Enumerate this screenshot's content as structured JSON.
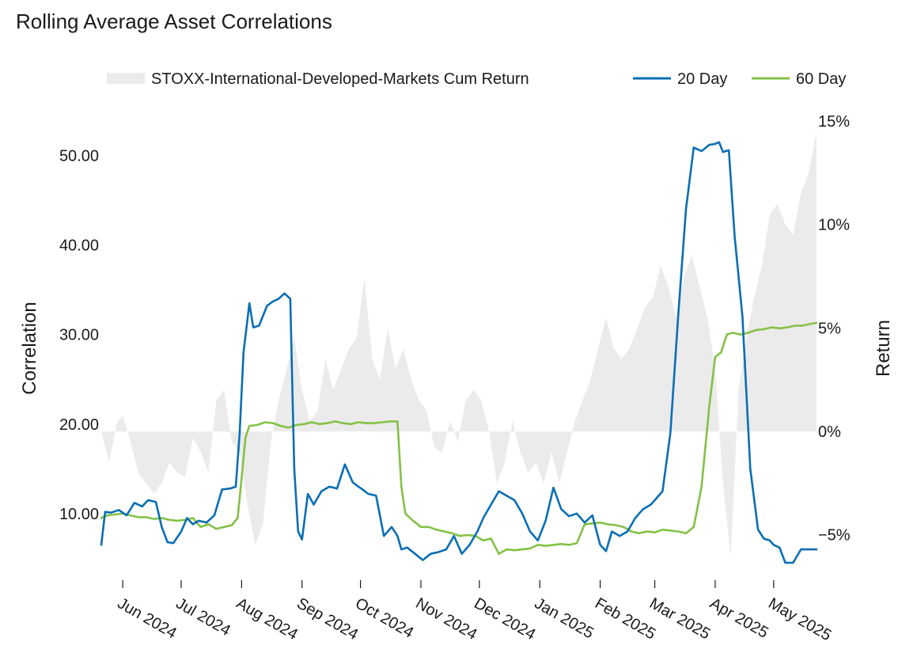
{
  "chart_data": {
    "type": "line",
    "title": "Rolling Average Asset Correlations",
    "ylabel": "Correlation",
    "y2label": "Return",
    "ylim": [
      3,
      55
    ],
    "y2lim": [
      -7.0,
      15.5
    ],
    "yticks": [
      "10.00",
      "20.00",
      "30.00",
      "40.00",
      "50.00"
    ],
    "y2ticks": [
      "−5%",
      "0%",
      "5%",
      "10%",
      "15%"
    ],
    "xlim": [
      "2024-05-21",
      "2025-05-23"
    ],
    "xticks": [
      "Jun 2024",
      "Jul 2024",
      "Aug 2024",
      "Sep 2024",
      "Oct 2024",
      "Nov 2024",
      "Dec 2024",
      "Jan 2025",
      "Feb 2025",
      "Mar 2025",
      "Apr 2025",
      "May 2025"
    ],
    "legend_position": "top",
    "grid": false,
    "colors": {
      "area": "#ebebeb",
      "series_20": "#0a6eb4",
      "series_60": "#84c147",
      "text": "#1a1a1a"
    },
    "area_series": {
      "name": "STOXX-International-Developed-Markets Cum Return",
      "x": [
        "2024-05-21",
        "2024-05-25",
        "2024-05-29",
        "2024-06-01",
        "2024-06-05",
        "2024-06-09",
        "2024-06-13",
        "2024-06-17",
        "2024-06-21",
        "2024-06-25",
        "2024-06-29",
        "2024-07-03",
        "2024-07-07",
        "2024-07-11",
        "2024-07-15",
        "2024-07-19",
        "2024-07-23",
        "2024-07-27",
        "2024-07-31",
        "2024-08-04",
        "2024-08-08",
        "2024-08-12",
        "2024-08-16",
        "2024-08-20",
        "2024-08-24",
        "2024-08-28",
        "2024-09-01",
        "2024-09-05",
        "2024-09-09",
        "2024-09-13",
        "2024-09-17",
        "2024-09-21",
        "2024-09-25",
        "2024-09-29",
        "2024-10-03",
        "2024-10-07",
        "2024-10-11",
        "2024-10-15",
        "2024-10-19",
        "2024-10-23",
        "2024-10-27",
        "2024-10-31",
        "2024-11-04",
        "2024-11-08",
        "2024-11-12",
        "2024-11-16",
        "2024-11-20",
        "2024-11-24",
        "2024-11-28",
        "2024-12-02",
        "2024-12-06",
        "2024-12-10",
        "2024-12-14",
        "2024-12-18",
        "2024-12-22",
        "2024-12-26",
        "2024-12-30",
        "2025-01-03",
        "2025-01-07",
        "2025-01-11",
        "2025-01-15",
        "2025-01-19",
        "2025-01-23",
        "2025-01-27",
        "2025-01-31",
        "2025-02-04",
        "2025-02-08",
        "2025-02-12",
        "2025-02-16",
        "2025-02-20",
        "2025-02-24",
        "2025-02-28",
        "2025-03-04",
        "2025-03-08",
        "2025-03-12",
        "2025-03-16",
        "2025-03-20",
        "2025-03-24",
        "2025-03-28",
        "2025-04-01",
        "2025-04-05",
        "2025-04-09",
        "2025-04-13",
        "2025-04-17",
        "2025-04-21",
        "2025-04-25",
        "2025-04-29",
        "2025-05-03",
        "2025-05-07",
        "2025-05-11",
        "2025-05-15",
        "2025-05-19",
        "2025-05-23"
      ],
      "values": [
        0.0,
        -1.5,
        0.4,
        0.8,
        -0.5,
        -2.0,
        -2.5,
        -3.0,
        -2.5,
        -1.5,
        -2.0,
        -2.2,
        -0.3,
        -1.0,
        -2.0,
        1.5,
        2.0,
        -0.5,
        -1.0,
        -3.5,
        -5.5,
        -4.5,
        -0.5,
        1.5,
        3.0,
        4.5,
        2.0,
        0.5,
        1.0,
        3.5,
        2.0,
        3.0,
        4.0,
        4.5,
        7.4,
        3.5,
        2.5,
        5.0,
        3.0,
        4.0,
        2.5,
        1.5,
        1.0,
        -0.8,
        -1.0,
        0.5,
        -0.5,
        1.5,
        2.0,
        1.5,
        0.0,
        -2.5,
        -1.5,
        0.5,
        -1.0,
        -2.0,
        -1.5,
        -2.5,
        -1.0,
        -2.5,
        -1.0,
        0.5,
        1.5,
        2.5,
        4.0,
        5.5,
        4.0,
        3.5,
        4.0,
        5.0,
        6.0,
        6.5,
        8.0,
        7.0,
        5.5,
        7.5,
        8.5,
        7.0,
        5.5,
        3.0,
        -2.5,
        -6.0,
        2.0,
        4.5,
        6.5,
        8.0,
        10.5,
        11.0,
        10.0,
        9.5,
        11.5,
        12.5,
        14.5
      ]
    },
    "series": [
      {
        "name": "20 Day",
        "x": [
          "2024-05-21",
          "2024-05-23",
          "2024-05-26",
          "2024-05-30",
          "2024-06-03",
          "2024-06-07",
          "2024-06-11",
          "2024-06-14",
          "2024-06-18",
          "2024-06-21",
          "2024-06-24",
          "2024-06-27",
          "2024-07-01",
          "2024-07-04",
          "2024-07-07",
          "2024-07-10",
          "2024-07-14",
          "2024-07-18",
          "2024-07-22",
          "2024-07-26",
          "2024-07-29",
          "2024-07-31",
          "2024-08-02",
          "2024-08-05",
          "2024-08-07",
          "2024-08-10",
          "2024-08-14",
          "2024-08-17",
          "2024-08-20",
          "2024-08-23",
          "2024-08-26",
          "2024-08-28",
          "2024-08-30",
          "2024-09-01",
          "2024-09-04",
          "2024-09-07",
          "2024-09-11",
          "2024-09-15",
          "2024-09-19",
          "2024-09-23",
          "2024-09-27",
          "2024-09-30",
          "2024-10-02",
          "2024-10-05",
          "2024-10-09",
          "2024-10-13",
          "2024-10-17",
          "2024-10-20",
          "2024-10-22",
          "2024-10-25",
          "2024-10-29",
          "2024-11-02",
          "2024-11-06",
          "2024-11-10",
          "2024-11-14",
          "2024-11-18",
          "2024-11-22",
          "2024-11-26",
          "2024-11-30",
          "2024-12-03",
          "2024-12-07",
          "2024-12-11",
          "2024-12-15",
          "2024-12-19",
          "2024-12-23",
          "2024-12-27",
          "2024-12-31",
          "2025-01-04",
          "2025-01-08",
          "2025-01-12",
          "2025-01-16",
          "2025-01-20",
          "2025-01-24",
          "2025-01-28",
          "2025-02-01",
          "2025-02-04",
          "2025-02-07",
          "2025-02-11",
          "2025-02-15",
          "2025-02-19",
          "2025-02-23",
          "2025-02-27",
          "2025-03-01",
          "2025-03-05",
          "2025-03-09",
          "2025-03-13",
          "2025-03-17",
          "2025-03-21",
          "2025-03-25",
          "2025-03-29",
          "2025-04-01",
          "2025-04-03",
          "2025-04-05",
          "2025-04-08",
          "2025-04-11",
          "2025-04-15",
          "2025-04-19",
          "2025-04-23",
          "2025-04-26",
          "2025-04-29",
          "2025-05-01",
          "2025-05-04",
          "2025-05-07",
          "2025-05-11",
          "2025-05-15",
          "2025-05-18",
          "2025-05-20",
          "2025-05-23"
        ],
        "values": [
          6.5,
          10.2,
          10.1,
          10.4,
          9.8,
          11.2,
          10.8,
          11.5,
          11.3,
          8.5,
          6.8,
          6.7,
          8.0,
          9.5,
          8.8,
          9.2,
          9.0,
          9.8,
          12.7,
          12.8,
          13.0,
          19.0,
          28.0,
          33.5,
          30.8,
          31.0,
          33.2,
          33.7,
          34.0,
          34.6,
          34.0,
          15.0,
          8.0,
          7.1,
          12.2,
          11.0,
          12.5,
          13.0,
          12.8,
          15.5,
          13.5,
          13.0,
          12.7,
          12.2,
          12.0,
          7.5,
          8.5,
          7.5,
          6.0,
          6.2,
          5.5,
          4.8,
          5.5,
          5.7,
          6.0,
          7.5,
          5.5,
          6.5,
          8.0,
          9.5,
          11.0,
          12.5,
          12.0,
          11.5,
          10.0,
          8.0,
          7.0,
          9.2,
          12.9,
          10.5,
          9.7,
          10.0,
          9.0,
          9.8,
          6.5,
          5.8,
          8.0,
          7.5,
          8.0,
          9.5,
          10.5,
          11.0,
          11.5,
          12.5,
          19.0,
          32.0,
          44.0,
          50.9,
          50.5,
          51.2,
          51.3,
          51.5,
          50.4,
          50.6,
          41.0,
          32.0,
          15.0,
          8.2,
          7.2,
          7.0,
          6.5,
          6.2,
          4.5,
          4.5,
          6.0,
          6.0,
          6.0,
          6.0
        ]
      },
      {
        "name": "60 Day",
        "x": [
          "2024-05-21",
          "2024-05-24",
          "2024-05-28",
          "2024-06-01",
          "2024-06-05",
          "2024-06-09",
          "2024-06-13",
          "2024-06-17",
          "2024-06-21",
          "2024-06-25",
          "2024-06-29",
          "2024-07-03",
          "2024-07-07",
          "2024-07-11",
          "2024-07-15",
          "2024-07-19",
          "2024-07-23",
          "2024-07-27",
          "2024-07-30",
          "2024-08-01",
          "2024-08-03",
          "2024-08-05",
          "2024-08-09",
          "2024-08-13",
          "2024-08-17",
          "2024-08-21",
          "2024-08-25",
          "2024-08-29",
          "2024-09-02",
          "2024-09-06",
          "2024-09-10",
          "2024-09-14",
          "2024-09-18",
          "2024-09-22",
          "2024-09-26",
          "2024-09-30",
          "2024-10-04",
          "2024-10-08",
          "2024-10-12",
          "2024-10-16",
          "2024-10-20",
          "2024-10-22",
          "2024-10-24",
          "2024-10-28",
          "2024-11-01",
          "2024-11-05",
          "2024-11-09",
          "2024-11-13",
          "2024-11-17",
          "2024-11-21",
          "2024-11-25",
          "2024-11-29",
          "2024-12-03",
          "2024-12-07",
          "2024-12-11",
          "2024-12-15",
          "2024-12-19",
          "2024-12-23",
          "2024-12-27",
          "2024-12-31",
          "2025-01-04",
          "2025-01-08",
          "2025-01-12",
          "2025-01-16",
          "2025-01-20",
          "2025-01-24",
          "2025-01-28",
          "2025-02-01",
          "2025-02-05",
          "2025-02-09",
          "2025-02-13",
          "2025-02-17",
          "2025-02-21",
          "2025-02-25",
          "2025-03-01",
          "2025-03-05",
          "2025-03-09",
          "2025-03-13",
          "2025-03-17",
          "2025-03-21",
          "2025-03-25",
          "2025-03-29",
          "2025-04-01",
          "2025-04-04",
          "2025-04-07",
          "2025-04-10",
          "2025-04-14",
          "2025-04-18",
          "2025-04-22",
          "2025-04-26",
          "2025-04-30",
          "2025-05-04",
          "2025-05-08",
          "2025-05-12",
          "2025-05-16",
          "2025-05-20",
          "2025-05-23"
        ],
        "values": [
          9.5,
          9.8,
          9.9,
          10.0,
          9.8,
          9.6,
          9.6,
          9.4,
          9.5,
          9.3,
          9.2,
          9.3,
          9.5,
          8.5,
          8.8,
          8.3,
          8.5,
          8.7,
          9.5,
          14.0,
          18.5,
          19.8,
          19.9,
          20.2,
          20.1,
          19.8,
          19.6,
          19.9,
          20.0,
          20.2,
          20.0,
          20.1,
          20.3,
          20.1,
          20.0,
          20.2,
          20.1,
          20.1,
          20.2,
          20.3,
          20.3,
          13.0,
          10.0,
          9.2,
          8.5,
          8.5,
          8.2,
          8.0,
          7.8,
          7.5,
          7.6,
          7.5,
          7.0,
          7.2,
          5.5,
          6.0,
          5.9,
          6.0,
          6.1,
          6.5,
          6.4,
          6.5,
          6.6,
          6.5,
          6.7,
          8.8,
          8.9,
          9.0,
          8.8,
          8.7,
          8.5,
          8.0,
          7.8,
          8.0,
          7.9,
          8.2,
          8.1,
          8.0,
          7.8,
          8.5,
          13.0,
          22.0,
          27.5,
          28.0,
          30.0,
          30.2,
          30.0,
          30.2,
          30.5,
          30.6,
          30.8,
          30.7,
          30.8,
          31.0,
          31.0,
          31.2,
          31.3
        ]
      }
    ]
  }
}
